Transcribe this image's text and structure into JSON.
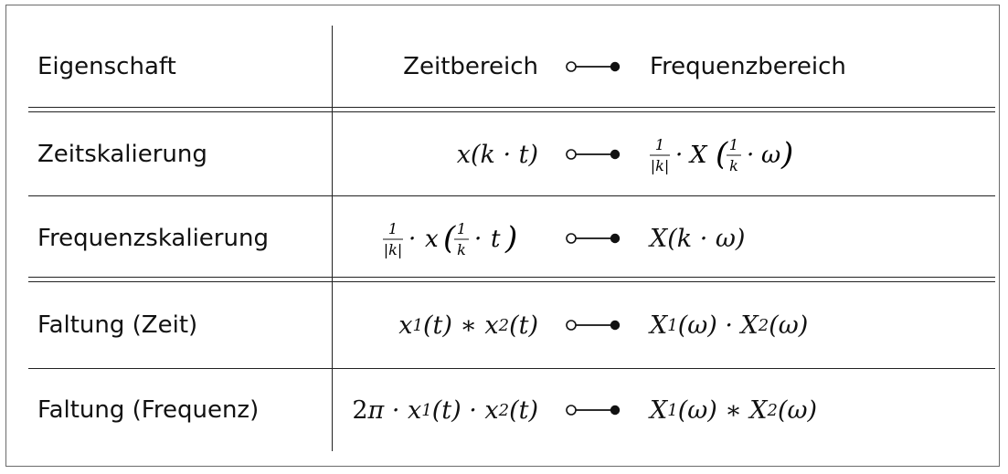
{
  "header": {
    "property": "Eigenschaft",
    "time_domain": "Zeitbereich",
    "frequency_domain": "Frequenzbereich",
    "correspondence_symbol": "correspondence-arrow"
  },
  "rows": [
    {
      "property": "Zeitskalierung",
      "time": "x(k · t)",
      "freq": "1/|k| · X(1/k · ω)"
    },
    {
      "property": "Frequenzskalierung",
      "time": "1/|k| · x(1/k · t)",
      "freq": "X(k · ω)"
    },
    {
      "property": "Faltung (Zeit)",
      "time": "x₁(t) ∗ x₂(t)",
      "freq": "X₁(ω) · X₂(ω)"
    },
    {
      "property": "Faltung (Frequenz)",
      "time": "2π · x₁(t) · x₂(t)",
      "freq": "X₁(ω) ∗ X₂(ω)"
    }
  ]
}
